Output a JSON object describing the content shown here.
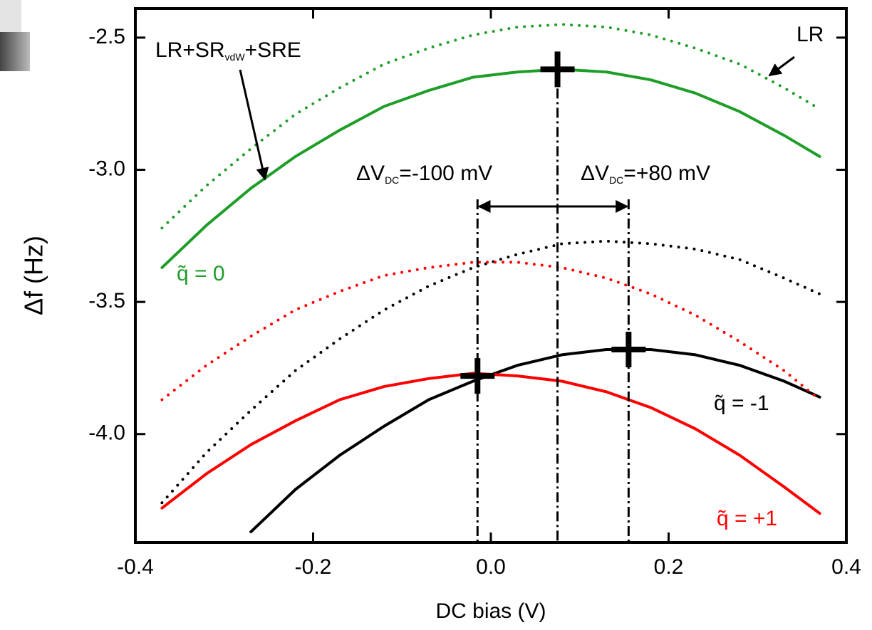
{
  "chart_data": {
    "type": "line",
    "xlabel": "DC bias (V)",
    "ylabel": "Δf (Hz)",
    "x": [
      -0.37,
      -0.32,
      -0.27,
      -0.22,
      -0.17,
      -0.12,
      -0.07,
      -0.02,
      0.03,
      0.08,
      0.13,
      0.18,
      0.23,
      0.28,
      0.33,
      0.37
    ],
    "series": [
      {
        "color": "#1e9e28",
        "style": "solid",
        "values": [
          -3.37,
          -3.21,
          -3.07,
          -2.95,
          -2.85,
          -2.76,
          -2.7,
          -2.65,
          -2.63,
          -2.62,
          -2.63,
          -2.66,
          -2.71,
          -2.78,
          -2.87,
          -2.95
        ]
      },
      {
        "color": "#1e9e28",
        "style": "dotted",
        "values": [
          -3.22,
          -3.06,
          -2.92,
          -2.79,
          -2.69,
          -2.6,
          -2.54,
          -2.49,
          -2.46,
          -2.45,
          -2.46,
          -2.49,
          -2.54,
          -2.6,
          -2.69,
          -2.77
        ]
      },
      {
        "color": "#000000",
        "style": "solid",
        "values": [
          null,
          null,
          -4.37,
          -4.21,
          -4.08,
          -3.97,
          -3.87,
          -3.8,
          -3.74,
          -3.7,
          -3.68,
          -3.68,
          -3.7,
          -3.74,
          -3.8,
          -3.86
        ]
      },
      {
        "color": "#000000",
        "style": "dotted",
        "values": [
          -4.26,
          -4.07,
          -3.91,
          -3.76,
          -3.64,
          -3.53,
          -3.44,
          -3.37,
          -3.32,
          -3.28,
          -3.27,
          -3.28,
          -3.3,
          -3.34,
          -3.41,
          -3.47
        ]
      },
      {
        "color": "#ff0000",
        "style": "solid",
        "values": [
          -4.28,
          -4.15,
          -4.04,
          -3.95,
          -3.87,
          -3.82,
          -3.79,
          -3.77,
          -3.78,
          -3.8,
          -3.84,
          -3.9,
          -3.98,
          -4.08,
          -4.2,
          -4.3
        ]
      },
      {
        "color": "#ff0000",
        "style": "dotted",
        "values": [
          -3.87,
          -3.74,
          -3.63,
          -3.53,
          -3.46,
          -3.4,
          -3.37,
          -3.35,
          -3.35,
          -3.37,
          -3.41,
          -3.47,
          -3.55,
          -3.65,
          -3.76,
          -3.87
        ]
      }
    ],
    "peaks": {
      "x": [
        0.075,
        0.155,
        -0.015
      ],
      "y": [
        -2.62,
        -3.68,
        -3.78
      ]
    },
    "annotations": [
      {
        "parts": [
          "LR+SR",
          "vdW",
          "+SRE"
        ],
        "color": "#000000"
      },
      {
        "parts": [
          "LR"
        ],
        "color": "#000000"
      },
      {
        "parts": [
          "ΔV",
          "DC",
          "=-100 mV"
        ],
        "color": "#000000"
      },
      {
        "parts": [
          "ΔV",
          "DC",
          "=+80 mV"
        ],
        "color": "#000000"
      },
      {
        "parts": [
          "q̃ = 0"
        ],
        "color": "#1e9e28"
      },
      {
        "parts": [
          "q̃ = -1"
        ],
        "color": "#000000"
      },
      {
        "parts": [
          "q̃ = +1"
        ],
        "color": "#ff0000"
      }
    ],
    "xlim": [
      -0.4,
      0.4
    ],
    "xticks": [
      -0.4,
      -0.2,
      {
        "value": 0,
        "label": "0.0"
      },
      0.2,
      0.4
    ],
    "ylim": [
      -4.41,
      -2.39
    ],
    "yticks": [
      -2.5,
      {
        "value": -3,
        "label": "-3.0"
      },
      -3.5,
      {
        "value": -4,
        "label": "-4.0"
      }
    ]
  }
}
